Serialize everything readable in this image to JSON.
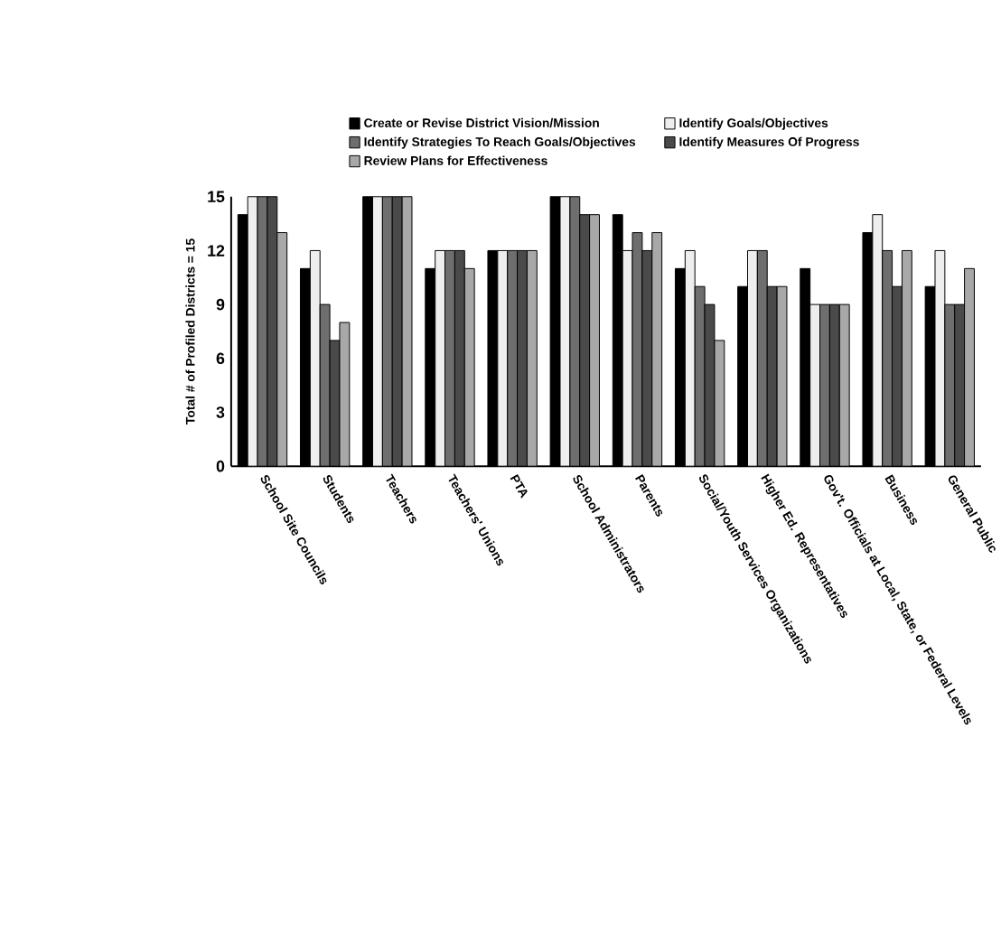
{
  "chart_data": {
    "type": "bar",
    "ylabel": "Total # of Profiled Districts = 15",
    "categories": [
      "School Site Councils",
      "Students",
      "Teachers",
      "Teachers' Unions",
      "PTA",
      "School Administrators",
      "Parents",
      "Social/Youth Services Organizations",
      "Higher Ed. Representatives",
      "Gov't. Officials at Local, State, or Federal Levels",
      "Business",
      "General Public"
    ],
    "series": [
      {
        "name": "Create or Revise District Vision/Mission",
        "color": "#000000",
        "values": [
          14,
          11,
          15,
          11,
          12,
          15,
          14,
          11,
          10,
          11,
          13,
          10
        ]
      },
      {
        "name": "Identify Goals/Objectives",
        "color": "#eeeeee",
        "values": [
          15,
          12,
          15,
          12,
          12,
          15,
          12,
          12,
          12,
          9,
          14,
          12
        ]
      },
      {
        "name": "Identify Strategies To Reach Goals/Objectives",
        "color": "#6e6e6e",
        "values": [
          15,
          9,
          15,
          12,
          12,
          15,
          13,
          10,
          12,
          9,
          12,
          9
        ]
      },
      {
        "name": "Identify Measures Of Progress",
        "color": "#4a4a4a",
        "values": [
          15,
          7,
          15,
          12,
          12,
          14,
          12,
          9,
          10,
          9,
          10,
          9
        ]
      },
      {
        "name": "Review Plans for Effectiveness",
        "color": "#a8a8a8",
        "values": [
          13,
          8,
          15,
          11,
          12,
          14,
          13,
          7,
          10,
          9,
          12,
          11
        ]
      }
    ],
    "ylim": [
      0,
      15
    ],
    "yticks": [
      0,
      3,
      6,
      9,
      12,
      15
    ],
    "grid": false,
    "legend": "top"
  }
}
